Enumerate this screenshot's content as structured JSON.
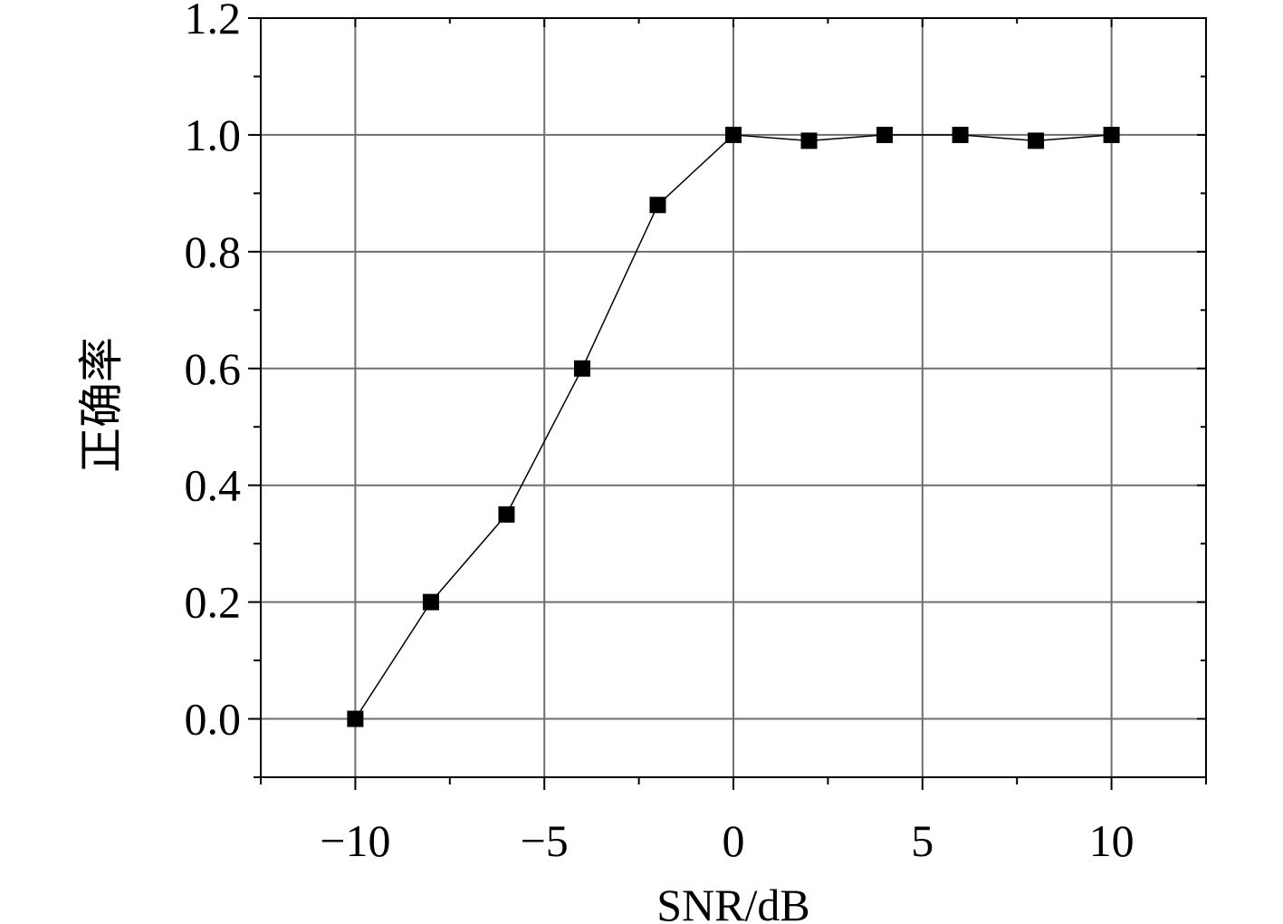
{
  "chart_data": {
    "type": "line",
    "xlabel": "SNR/dB",
    "ylabel": "正确率",
    "xlim": [
      -12.5,
      12.5
    ],
    "ylim": [
      -0.1,
      1.2
    ],
    "xticks": [
      -10,
      -5,
      0,
      5,
      10
    ],
    "xtick_labels": [
      "−10",
      "−5",
      "0",
      "5",
      "10"
    ],
    "yticks": [
      0.0,
      0.2,
      0.4,
      0.6,
      0.8,
      1.0,
      1.2
    ],
    "ytick_labels": [
      "0.0",
      "0.2",
      "0.4",
      "0.6",
      "0.8",
      "1.0",
      "1.2"
    ],
    "grid": true,
    "series": [
      {
        "marker": "square",
        "color": "#000000",
        "x": [
          -10,
          -8,
          -6,
          -4,
          -2,
          0,
          2,
          4,
          6,
          8,
          10
        ],
        "y": [
          0.0,
          0.2,
          0.35,
          0.6,
          0.88,
          1.0,
          0.99,
          1.0,
          1.0,
          0.99,
          1.0
        ]
      }
    ]
  }
}
